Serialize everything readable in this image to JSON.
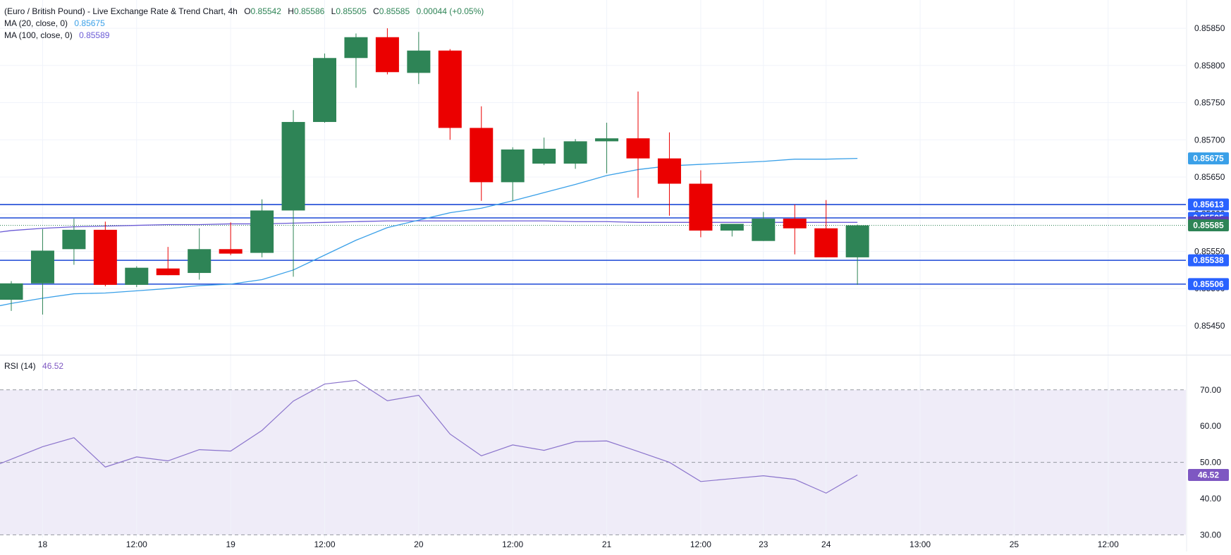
{
  "header": {
    "title": "(Euro / British Pound) - Live Exchange Rate & Trend Chart, 4h",
    "o_label": "O",
    "o_value": "0.85542",
    "h_label": "H",
    "h_value": "0.85586",
    "l_label": "L",
    "l_value": "0.85505",
    "c_label": "C",
    "c_value": "0.85585",
    "change": "0.00044 (+0.05%)"
  },
  "indicators": {
    "ma20_label": "MA (20, close, 0)",
    "ma20_value": "0.85675",
    "ma100_label": "MA (100, close, 0)",
    "ma100_value": "0.85589",
    "rsi_label": "RSI (14)",
    "rsi_value": "46.52"
  },
  "colors": {
    "up": "#2e8456",
    "down": "#eb0000",
    "ma20": "#3aa0e8",
    "ma100": "#6b5bd6",
    "rsi_line": "#8b74cc",
    "rsi_band": "#efecf8",
    "hline": "#1c48d6",
    "label_blue": "#2962ff",
    "ma100_label": "#5b3fb5",
    "price_label": "#2e8456",
    "rsi_label": "#7e57c2",
    "grid": "#f0f3fa",
    "axis_text": "#131722"
  },
  "chart_data": [
    {
      "type": "candlestick",
      "title": "(Euro / British Pound) - Live Exchange Rate & Trend Chart, 4h",
      "y_ticks": [
        0.8545,
        0.855,
        0.8555,
        0.856,
        0.8565,
        0.857,
        0.8575,
        0.858,
        0.8585
      ],
      "y_tick_labels": [
        "0.85450",
        "0.85500",
        "0.85550",
        "0.85600",
        "0.85650",
        "0.85700",
        "0.85750",
        "0.85800",
        "0.85850"
      ],
      "ylim": [
        0.85412,
        0.85888
      ],
      "x_tick_labels": [
        {
          "slot": 1,
          "label": "18"
        },
        {
          "slot": 4,
          "label": "12:00"
        },
        {
          "slot": 7,
          "label": "19"
        },
        {
          "slot": 10,
          "label": "12:00"
        },
        {
          "slot": 13,
          "label": "20"
        },
        {
          "slot": 16,
          "label": "12:00"
        },
        {
          "slot": 19,
          "label": "21"
        },
        {
          "slot": 22,
          "label": "12:00"
        },
        {
          "slot": 24,
          "label": "23"
        },
        {
          "slot": 26,
          "label": "24"
        },
        {
          "slot": 29,
          "label": "13:00"
        },
        {
          "slot": 32,
          "label": "25"
        },
        {
          "slot": 35,
          "label": "12:00"
        }
      ],
      "candles": [
        {
          "slot": 0,
          "o": 0.85485,
          "h": 0.8551,
          "l": 0.8547,
          "c": 0.85507
        },
        {
          "slot": 1,
          "o": 0.85507,
          "h": 0.8558,
          "l": 0.85465,
          "c": 0.85551
        },
        {
          "slot": 2,
          "o": 0.85553,
          "h": 0.85594,
          "l": 0.85532,
          "c": 0.85579
        },
        {
          "slot": 3,
          "o": 0.85579,
          "h": 0.8559,
          "l": 0.85503,
          "c": 0.85505
        },
        {
          "slot": 4,
          "o": 0.85505,
          "h": 0.8553,
          "l": 0.85502,
          "c": 0.85528
        },
        {
          "slot": 5,
          "o": 0.85527,
          "h": 0.85556,
          "l": 0.85518,
          "c": 0.85518
        },
        {
          "slot": 6,
          "o": 0.85521,
          "h": 0.85581,
          "l": 0.85512,
          "c": 0.85553
        },
        {
          "slot": 7,
          "o": 0.85553,
          "h": 0.85589,
          "l": 0.85545,
          "c": 0.85547
        },
        {
          "slot": 8,
          "o": 0.85548,
          "h": 0.8562,
          "l": 0.85542,
          "c": 0.85605
        },
        {
          "slot": 9,
          "o": 0.85605,
          "h": 0.8574,
          "l": 0.85516,
          "c": 0.85724
        },
        {
          "slot": 10,
          "o": 0.85724,
          "h": 0.85816,
          "l": 0.85723,
          "c": 0.8581
        },
        {
          "slot": 11,
          "o": 0.8581,
          "h": 0.85843,
          "l": 0.8577,
          "c": 0.85838
        },
        {
          "slot": 12,
          "o": 0.85838,
          "h": 0.8585,
          "l": 0.85788,
          "c": 0.85791
        },
        {
          "slot": 13,
          "o": 0.8579,
          "h": 0.85845,
          "l": 0.85775,
          "c": 0.8582
        },
        {
          "slot": 14,
          "o": 0.8582,
          "h": 0.85822,
          "l": 0.857,
          "c": 0.85716
        },
        {
          "slot": 15,
          "o": 0.85716,
          "h": 0.85745,
          "l": 0.85618,
          "c": 0.85643
        },
        {
          "slot": 16,
          "o": 0.85643,
          "h": 0.8569,
          "l": 0.85618,
          "c": 0.85687
        },
        {
          "slot": 17,
          "o": 0.85668,
          "h": 0.85703,
          "l": 0.85666,
          "c": 0.85688
        },
        {
          "slot": 18,
          "o": 0.85668,
          "h": 0.85701,
          "l": 0.85661,
          "c": 0.85698
        },
        {
          "slot": 19,
          "o": 0.85698,
          "h": 0.85723,
          "l": 0.85655,
          "c": 0.85702
        },
        {
          "slot": 20,
          "o": 0.85702,
          "h": 0.85765,
          "l": 0.85622,
          "c": 0.85675
        },
        {
          "slot": 21,
          "o": 0.85675,
          "h": 0.8571,
          "l": 0.85598,
          "c": 0.85641
        },
        {
          "slot": 22,
          "o": 0.85641,
          "h": 0.85659,
          "l": 0.85569,
          "c": 0.85578
        },
        {
          "slot": 23,
          "o": 0.85578,
          "h": 0.85585,
          "l": 0.8557,
          "c": 0.85587
        },
        {
          "slot": 24,
          "o": 0.85564,
          "h": 0.85603,
          "l": 0.85564,
          "c": 0.85594
        },
        {
          "slot": 25,
          "o": 0.85594,
          "h": 0.85613,
          "l": 0.85546,
          "c": 0.85581
        },
        {
          "slot": 26,
          "o": 0.85581,
          "h": 0.85619,
          "l": 0.85542,
          "c": 0.85542
        },
        {
          "slot": 27,
          "o": 0.85542,
          "h": 0.85586,
          "l": 0.85505,
          "c": 0.85585
        }
      ],
      "ma20": [
        {
          "slot": 0,
          "v": 0.8548
        },
        {
          "slot": 1,
          "v": 0.85487
        },
        {
          "slot": 2,
          "v": 0.85493
        },
        {
          "slot": 3,
          "v": 0.85494
        },
        {
          "slot": 4,
          "v": 0.85497
        },
        {
          "slot": 5,
          "v": 0.855
        },
        {
          "slot": 6,
          "v": 0.85504
        },
        {
          "slot": 7,
          "v": 0.85506
        },
        {
          "slot": 8,
          "v": 0.85512
        },
        {
          "slot": 9,
          "v": 0.85525
        },
        {
          "slot": 10,
          "v": 0.85545
        },
        {
          "slot": 11,
          "v": 0.85565
        },
        {
          "slot": 12,
          "v": 0.85582
        },
        {
          "slot": 13,
          "v": 0.85592
        },
        {
          "slot": 14,
          "v": 0.85602
        },
        {
          "slot": 15,
          "v": 0.85608
        },
        {
          "slot": 16,
          "v": 0.85618
        },
        {
          "slot": 17,
          "v": 0.85629
        },
        {
          "slot": 18,
          "v": 0.8564
        },
        {
          "slot": 19,
          "v": 0.85652
        },
        {
          "slot": 20,
          "v": 0.8566
        },
        {
          "slot": 21,
          "v": 0.85665
        },
        {
          "slot": 22,
          "v": 0.85667
        },
        {
          "slot": 23,
          "v": 0.85669
        },
        {
          "slot": 24,
          "v": 0.85671
        },
        {
          "slot": 25,
          "v": 0.85674
        },
        {
          "slot": 26,
          "v": 0.85674
        },
        {
          "slot": 27,
          "v": 0.85675
        }
      ],
      "ma100": [
        {
          "slot": 0,
          "v": 0.85578
        },
        {
          "slot": 1,
          "v": 0.85581
        },
        {
          "slot": 2,
          "v": 0.85583
        },
        {
          "slot": 3,
          "v": 0.85584
        },
        {
          "slot": 4,
          "v": 0.85585
        },
        {
          "slot": 5,
          "v": 0.85586
        },
        {
          "slot": 6,
          "v": 0.85586
        },
        {
          "slot": 7,
          "v": 0.85587
        },
        {
          "slot": 8,
          "v": 0.85587
        },
        {
          "slot": 9,
          "v": 0.85588
        },
        {
          "slot": 10,
          "v": 0.85589
        },
        {
          "slot": 11,
          "v": 0.8559
        },
        {
          "slot": 12,
          "v": 0.85591
        },
        {
          "slot": 13,
          "v": 0.85591
        },
        {
          "slot": 14,
          "v": 0.85591
        },
        {
          "slot": 15,
          "v": 0.85591
        },
        {
          "slot": 16,
          "v": 0.85591
        },
        {
          "slot": 17,
          "v": 0.85591
        },
        {
          "slot": 18,
          "v": 0.8559
        },
        {
          "slot": 19,
          "v": 0.8559
        },
        {
          "slot": 20,
          "v": 0.85589
        },
        {
          "slot": 21,
          "v": 0.85589
        },
        {
          "slot": 22,
          "v": 0.85589
        },
        {
          "slot": 23,
          "v": 0.85589
        },
        {
          "slot": 24,
          "v": 0.85589
        },
        {
          "slot": 25,
          "v": 0.85589
        },
        {
          "slot": 26,
          "v": 0.85589
        },
        {
          "slot": 27,
          "v": 0.85589
        }
      ],
      "horizontal_lines": [
        0.85613,
        0.85595,
        0.85538,
        0.85506
      ],
      "last_price_line": 0.85585,
      "price_labels": [
        {
          "value": 0.85675,
          "text": "0.85675",
          "color_key": "ma20"
        },
        {
          "value": 0.85613,
          "text": "0.85613",
          "color_key": "label_blue"
        },
        {
          "value": 0.85595,
          "text": "0.85595",
          "color_key": "label_blue"
        },
        {
          "value": 0.85589,
          "text": "0.85589",
          "color_key": "ma100_label"
        },
        {
          "value": 0.85585,
          "text": "0.85585",
          "color_key": "price_label"
        },
        {
          "value": 0.85538,
          "text": "0.85538",
          "color_key": "label_blue"
        },
        {
          "value": 0.85506,
          "text": "0.85506",
          "color_key": "label_blue"
        }
      ]
    },
    {
      "type": "line",
      "title": "RSI (14)",
      "y_ticks": [
        30,
        40,
        50,
        60,
        70
      ],
      "y_tick_labels": [
        "30.00",
        "40.00",
        "50.00",
        "60.00",
        "70.00"
      ],
      "ylim": [
        25.4,
        79.3
      ],
      "band": [
        30,
        70
      ],
      "dashed_levels": [
        30,
        50,
        70
      ],
      "series": [
        {
          "values": [
            {
              "slot": -0.6,
              "v": 48.8
            },
            {
              "slot": 1,
              "v": 54.3
            },
            {
              "slot": 2,
              "v": 56.8
            },
            {
              "slot": 3,
              "v": 48.7
            },
            {
              "slot": 4,
              "v": 51.5
            },
            {
              "slot": 5,
              "v": 50.4
            },
            {
              "slot": 6,
              "v": 53.5
            },
            {
              "slot": 7,
              "v": 53.1
            },
            {
              "slot": 8,
              "v": 58.8
            },
            {
              "slot": 9,
              "v": 66.9
            },
            {
              "slot": 10,
              "v": 71.6
            },
            {
              "slot": 11,
              "v": 72.6
            },
            {
              "slot": 12,
              "v": 67.0
            },
            {
              "slot": 13,
              "v": 68.5
            },
            {
              "slot": 14,
              "v": 57.8
            },
            {
              "slot": 15,
              "v": 51.8
            },
            {
              "slot": 16,
              "v": 54.8
            },
            {
              "slot": 17,
              "v": 53.3
            },
            {
              "slot": 18,
              "v": 55.7
            },
            {
              "slot": 19,
              "v": 55.9
            },
            {
              "slot": 20,
              "v": 53.0
            },
            {
              "slot": 21,
              "v": 50.0
            },
            {
              "slot": 22,
              "v": 44.7
            },
            {
              "slot": 23,
              "v": 45.5
            },
            {
              "slot": 24,
              "v": 46.3
            },
            {
              "slot": 25,
              "v": 45.3
            },
            {
              "slot": 26,
              "v": 41.5
            },
            {
              "slot": 27,
              "v": 46.52
            }
          ]
        }
      ],
      "price_labels": [
        {
          "value": 46.52,
          "text": "46.52",
          "color_key": "rsi_label"
        }
      ]
    }
  ]
}
